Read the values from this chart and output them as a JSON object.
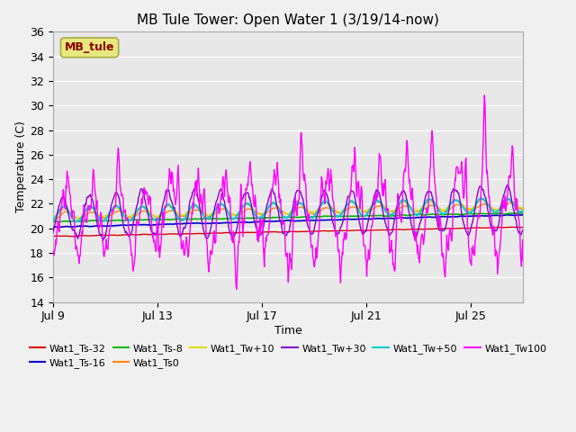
{
  "title": "MB Tule Tower: Open Water 1 (3/19/14-now)",
  "xlabel": "Time",
  "ylabel": "Temperature (C)",
  "ylim": [
    14,
    36
  ],
  "yticks": [
    14,
    16,
    18,
    20,
    22,
    24,
    26,
    28,
    30,
    32,
    34,
    36
  ],
  "xtick_labels": [
    "Jul 9",
    "Jul 13",
    "Jul 17",
    "Jul 21",
    "Jul 25"
  ],
  "xtick_positions": [
    0,
    4,
    8,
    12,
    16
  ],
  "n_days": 18,
  "points_per_day": 48,
  "series_colors": {
    "Wat1_Ts-32": "#dd0000",
    "Wat1_Ts-16": "#0000cc",
    "Wat1_Ts-8": "#00bb00",
    "Wat1_Ts0": "#ff8800",
    "Wat1_Tw+10": "#dddd00",
    "Wat1_Tw+30": "#8800cc",
    "Wat1_Tw+50": "#00cccc",
    "Wat1_Tw100": "#ff00ff"
  },
  "bg_outer": "#f0f0f0",
  "bg_plot": "#e8e8e8",
  "label_box_color": "#e8e880",
  "label_box_text": "MB_tule",
  "label_box_text_color": "#880000",
  "label_box_edge": "#aaaa44"
}
